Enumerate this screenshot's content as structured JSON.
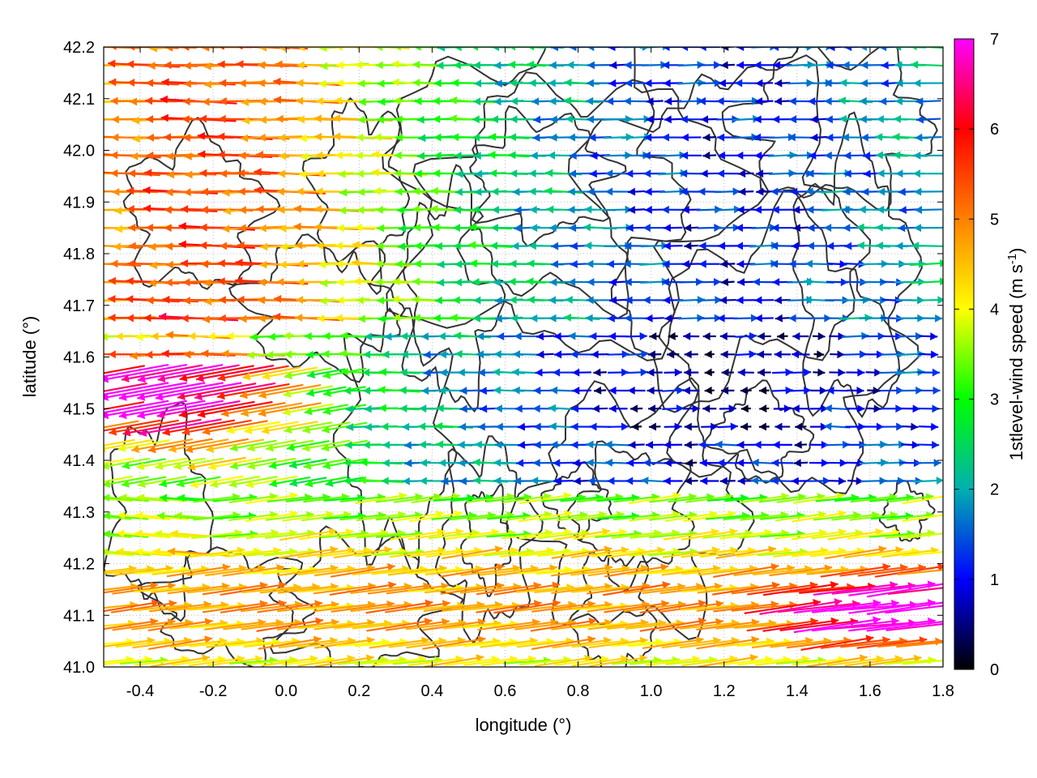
{
  "chart_data": {
    "type": "vector-field",
    "xlabel": "longitude (°)",
    "ylabel": "latitude (°)",
    "colorbar_label_main": "1stlevel-wind speed (m s",
    "colorbar_label_sup": "-1",
    "colorbar_label_end": ")",
    "xlim": [
      -0.5,
      1.8
    ],
    "ylim": [
      41.0,
      42.2
    ],
    "xticks": [
      "-0.4",
      "-0.2",
      "0.0",
      "0.2",
      "0.4",
      "0.6",
      "0.8",
      "1.0",
      "1.2",
      "1.4",
      "1.6",
      "1.8"
    ],
    "yticks": [
      "41.0",
      "41.1",
      "41.2",
      "41.3",
      "41.4",
      "41.5",
      "41.6",
      "41.7",
      "41.8",
      "41.9",
      "42.0",
      "42.1",
      "42.2"
    ],
    "colorbar_ticks": [
      "0",
      "1",
      "2",
      "3",
      "4",
      "5",
      "6",
      "7"
    ],
    "colorbar_range": [
      0,
      7
    ],
    "colorbar_colors": [
      "#000000",
      "#0000ff",
      "#00b0b0",
      "#00ff00",
      "#ffff00",
      "#ff8000",
      "#ff0000",
      "#ff00ff"
    ],
    "grid": true,
    "grid_style": "dotted",
    "wind_regions": [
      {
        "region": "west coast band (lon -0.5 to 0.0, lat 41.4 to 41.65)",
        "speed_ms": 7,
        "direction": "westward"
      },
      {
        "region": "south-east (lon 1.3 to 1.8, lat 41.05 to 41.18)",
        "speed_ms": 7,
        "direction": "eastward"
      },
      {
        "region": "north-west (lon -0.5 to 0.3, lat 41.7 to 42.2)",
        "speed_ms": 4,
        "direction": "westward"
      },
      {
        "region": "south (lat 41.0 to 41.35)",
        "speed_ms": 4.5,
        "direction": "eastward"
      },
      {
        "region": "north-east interior (lon 0.8 to 1.8, lat 41.5 to 42.2)",
        "speed_ms": 1,
        "direction": "variable"
      }
    ]
  }
}
